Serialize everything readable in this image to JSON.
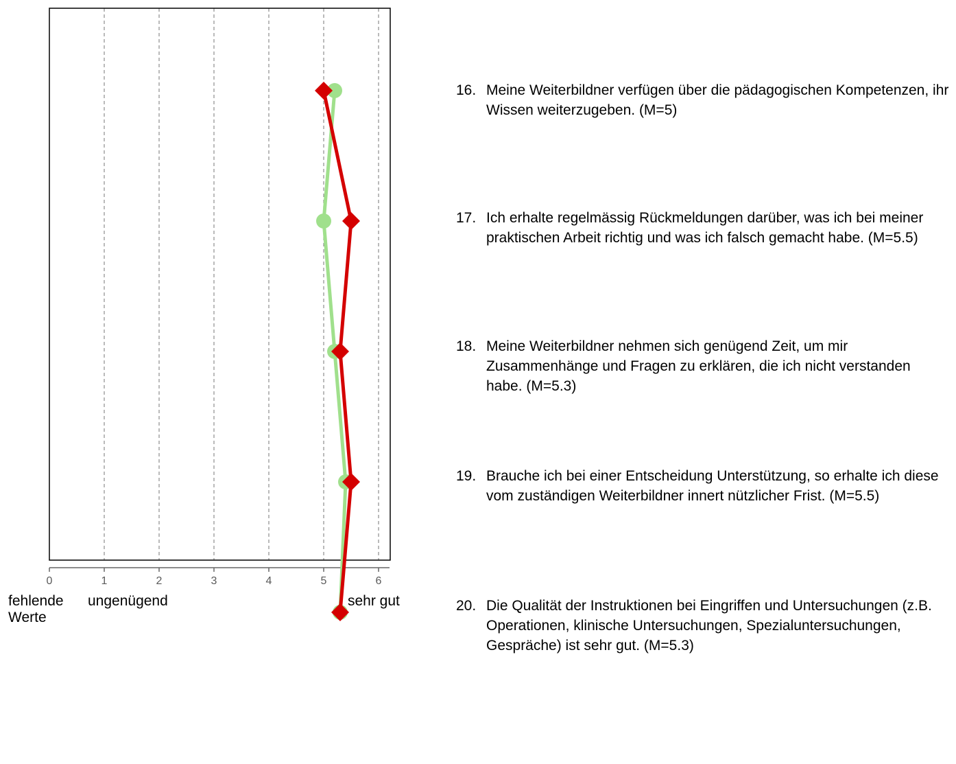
{
  "chart_data": {
    "type": "line",
    "orientation": "horizontal",
    "xlim": [
      0,
      6.2
    ],
    "x_ticks": [
      "0",
      "1",
      "2",
      "3",
      "4",
      "5",
      "6"
    ],
    "x_tick_values": [
      0,
      1,
      2,
      3,
      4,
      5,
      6
    ],
    "grid": "vertical dashed lines at 1-6",
    "categories": [
      "16",
      "17",
      "18",
      "19",
      "20"
    ],
    "series": [
      {
        "color": "#a0e08c",
        "marker": "circle",
        "values": [
          5.2,
          5.0,
          5.2,
          5.4,
          5.3
        ]
      },
      {
        "color": "#d40000",
        "marker": "diamond",
        "values": [
          5.0,
          5.5,
          5.3,
          5.5,
          5.3
        ]
      }
    ],
    "scale_labels": {
      "left": [
        "fehlende",
        "Werte"
      ],
      "mid": "ungenügend",
      "right": "sehr gut"
    }
  },
  "items": [
    {
      "num": "16.",
      "text": "Meine Weiterbildner verfügen über die pädagogischen Kompetenzen, ihr Wissen weiterzugeben. (M=5)"
    },
    {
      "num": "17.",
      "text": "Ich erhalte regelmässig Rückmeldungen darüber, was ich bei meiner praktischen Arbeit richtig und was ich falsch gemacht habe. (M=5.5)"
    },
    {
      "num": "18.",
      "text": "Meine Weiterbildner nehmen sich genügend Zeit, um mir Zusammenhänge und Fragen zu erklären, die ich nicht verstanden habe. (M=5.3)"
    },
    {
      "num": "19.",
      "text": "Brauche ich bei einer Entscheidung Unterstützung, so erhalte ich diese vom zuständigen Weiterbildner innert nützlicher Frist. (M=5.5)"
    },
    {
      "num": "20.",
      "text": "Die Qualität der Instruktionen bei Eingriffen und Untersuchungen (z.B. Operationen, klinische Untersuchungen, Spezialuntersuchungen, Gespräche) ist sehr gut. (M=5.3)"
    }
  ]
}
